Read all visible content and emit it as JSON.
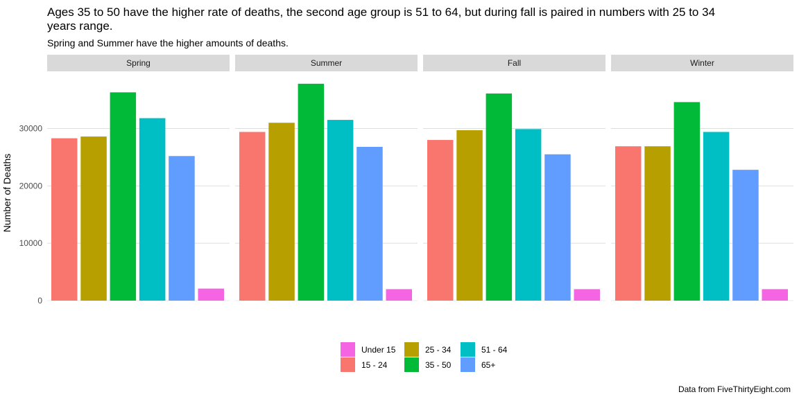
{
  "title": "Ages 35 to 50 have the higher rate of deaths, the second age group is 51 to 64, but during fall is paired in numbers with 25 to 34 years range.",
  "subtitle": "Spring and Summer have the higher amounts of deaths.",
  "caption": "Data from FiveThirtyEight.com",
  "chart_data": {
    "type": "bar",
    "facets": [
      "Spring",
      "Summer",
      "Fall",
      "Winter"
    ],
    "categories": [
      "15 - 24",
      "25 - 34",
      "35 - 50",
      "51 - 64",
      "65+",
      "Under 15"
    ],
    "series": [
      {
        "facet": "Spring",
        "values": [
          28300,
          28600,
          36300,
          31800,
          25200,
          2100
        ]
      },
      {
        "facet": "Summer",
        "values": [
          29400,
          31000,
          37800,
          31500,
          26800,
          2000
        ]
      },
      {
        "facet": "Fall",
        "values": [
          28000,
          29700,
          36100,
          29900,
          25500,
          2000
        ]
      },
      {
        "facet": "Winter",
        "values": [
          26900,
          26900,
          34600,
          29400,
          22800,
          2000
        ]
      }
    ],
    "colors": {
      "15 - 24": "#F8766D",
      "25 - 34": "#B79F00",
      "35 - 50": "#00BA38",
      "51 - 64": "#00BFC4",
      "65+": "#619CFF",
      "Under 15": "#F564E3"
    },
    "xlabel": "",
    "ylabel": "Number of Deaths",
    "ylim": [
      0,
      40000
    ],
    "yticks": [
      0,
      10000,
      20000,
      30000
    ],
    "grid": true,
    "legend_position": "bottom",
    "legend_items": [
      "Under 15",
      "15 - 24",
      "25 - 34",
      "35 - 50",
      "51 - 64",
      "65+"
    ]
  }
}
